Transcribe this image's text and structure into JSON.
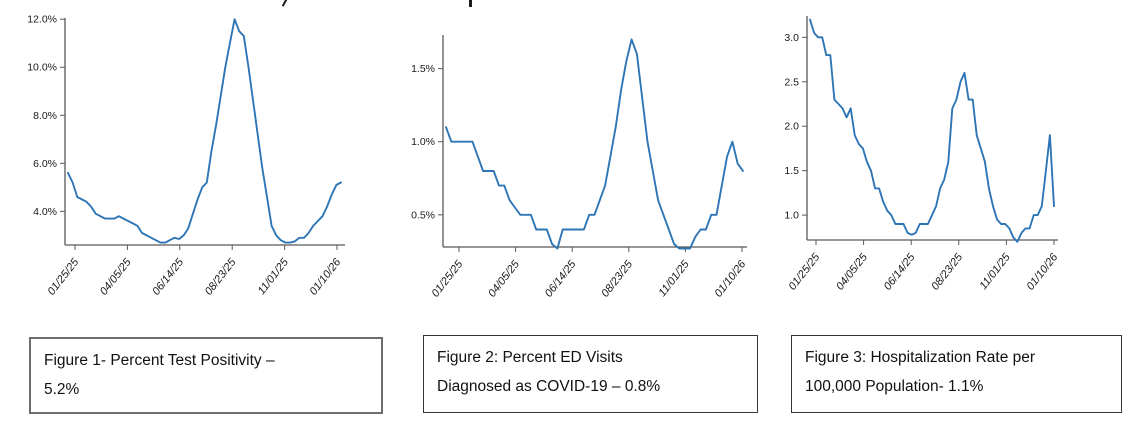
{
  "page": {
    "background": "#ffffff"
  },
  "colors": {
    "line": "#2e75b6",
    "axis": "#595959",
    "tick_text": "#1a1a1a"
  },
  "chart_data": [
    {
      "type": "line",
      "title": "Figure 1- Percent Test Positivity – 5.2%",
      "latest_value": "5.2%",
      "x_tick_labels": [
        "01/25/25",
        "04/05/25",
        "06/14/25",
        "08/23/25",
        "11/01/25",
        "01/10/26"
      ],
      "ytick_labels": [
        "4.0%",
        "6.0%",
        "8.0%",
        "10.0%",
        "12.0%"
      ],
      "ytick_values": [
        4,
        6,
        8,
        10,
        12
      ],
      "ylim": [
        2.6,
        12.05
      ],
      "grid": false,
      "legend": "none",
      "values": [
        5.6,
        5.2,
        4.6,
        4.5,
        4.4,
        4.2,
        3.9,
        3.8,
        3.7,
        3.7,
        3.7,
        3.8,
        3.7,
        3.6,
        3.5,
        3.4,
        3.1,
        3.0,
        2.9,
        2.8,
        2.7,
        2.7,
        2.8,
        2.9,
        2.85,
        3.0,
        3.3,
        3.9,
        4.5,
        5.0,
        5.2,
        6.5,
        7.6,
        8.8,
        10.0,
        11.0,
        12.0,
        11.5,
        11.3,
        10.0,
        8.6,
        7.2,
        5.8,
        4.6,
        3.4,
        3.0,
        2.8,
        2.7,
        2.7,
        2.75,
        2.9,
        2.9,
        3.1,
        3.4,
        3.6,
        3.8,
        4.2,
        4.7,
        5.1,
        5.2
      ]
    },
    {
      "type": "line",
      "title": "Figure 2: Percent ED Visits Diagnosed as COVID-19 – 0.8%",
      "latest_value": "0.8%",
      "x_tick_labels": [
        "01/25/25",
        "04/05/25",
        "06/14/25",
        "08/23/25",
        "11/01/25",
        "01/10/26"
      ],
      "ytick_labels": [
        "0.5%",
        "1.0%",
        "1.5%"
      ],
      "ytick_values": [
        0.5,
        1.0,
        1.5
      ],
      "ylim": [
        0.28,
        1.73
      ],
      "grid": false,
      "legend": "none",
      "values": [
        1.1,
        1.0,
        1.0,
        1.0,
        1.0,
        1.0,
        0.9,
        0.8,
        0.8,
        0.8,
        0.7,
        0.7,
        0.6,
        0.55,
        0.5,
        0.5,
        0.5,
        0.4,
        0.4,
        0.4,
        0.3,
        0.27,
        0.4,
        0.4,
        0.4,
        0.4,
        0.4,
        0.5,
        0.5,
        0.6,
        0.7,
        0.9,
        1.1,
        1.35,
        1.55,
        1.7,
        1.6,
        1.3,
        1.0,
        0.8,
        0.6,
        0.5,
        0.4,
        0.3,
        0.27,
        0.27,
        0.27,
        0.35,
        0.4,
        0.4,
        0.5,
        0.5,
        0.7,
        0.9,
        1.0,
        0.85,
        0.8
      ]
    },
    {
      "type": "line",
      "title": "Figure 3: Hospitalization Rate per 100,000 Population- 1.1%",
      "latest_value": "1.1",
      "x_tick_labels": [
        "01/25/25",
        "04/05/25",
        "06/14/25",
        "08/23/25",
        "11/01/25",
        "01/10/26"
      ],
      "ytick_labels": [
        "1.0",
        "1.5",
        "2.0",
        "2.5",
        "3.0"
      ],
      "ytick_values": [
        1.0,
        1.5,
        2.0,
        2.5,
        3.0
      ],
      "ylim": [
        0.72,
        3.24
      ],
      "grid": false,
      "legend": "none",
      "values": [
        3.2,
        3.05,
        3.0,
        3.0,
        2.8,
        2.8,
        2.3,
        2.25,
        2.2,
        2.1,
        2.2,
        1.9,
        1.8,
        1.75,
        1.6,
        1.5,
        1.3,
        1.3,
        1.15,
        1.05,
        1.0,
        0.9,
        0.9,
        0.9,
        0.8,
        0.78,
        0.8,
        0.9,
        0.9,
        0.9,
        1.0,
        1.1,
        1.3,
        1.4,
        1.6,
        2.2,
        2.3,
        2.5,
        2.6,
        2.3,
        2.3,
        1.9,
        1.75,
        1.6,
        1.3,
        1.1,
        0.95,
        0.9,
        0.9,
        0.85,
        0.75,
        0.7,
        0.8,
        0.85,
        0.85,
        1.0,
        1.0,
        1.1,
        1.5,
        1.9,
        1.1
      ]
    }
  ],
  "captions": [
    {
      "lines": [
        "Figure 1- Percent Test Positivity –",
        "5.2%"
      ]
    },
    {
      "lines": [
        "Figure 2: Percent ED Visits",
        "Diagnosed as COVID-19 – 0.8%"
      ]
    },
    {
      "lines": [
        "Figure 3: Hospitalization Rate per",
        "100,000 Population- 1.1%"
      ]
    }
  ]
}
